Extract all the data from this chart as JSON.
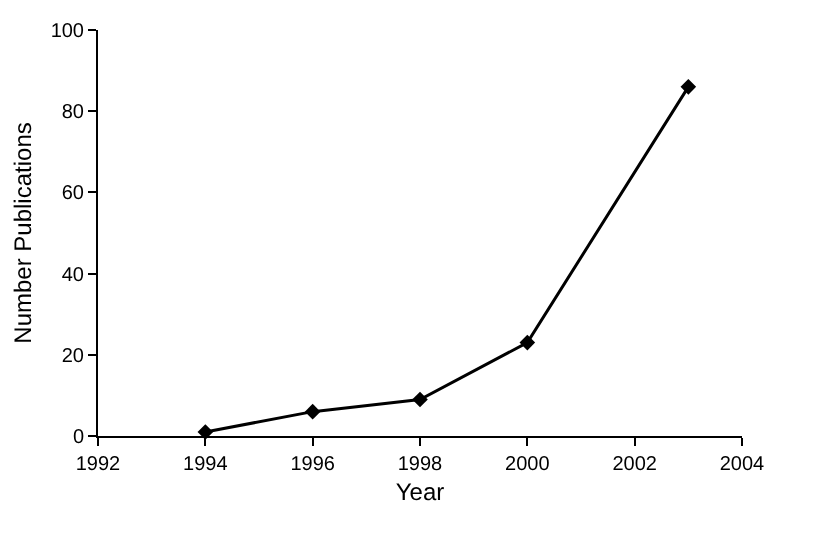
{
  "chart_data": {
    "type": "line",
    "xlabel": "Year",
    "ylabel": "Number Publications",
    "x": [
      1994,
      1996,
      1998,
      2000,
      2003
    ],
    "series": [
      {
        "color": "#000000",
        "values": [
          1,
          6,
          9,
          23,
          86
        ]
      }
    ],
    "xlim": [
      1992,
      2004
    ],
    "xticks": [
      1992,
      1994,
      1996,
      1998,
      2000,
      2002,
      2004
    ],
    "ylim": [
      0,
      100
    ],
    "yticks": [
      0,
      20,
      40,
      60,
      80,
      100
    ],
    "grid": false,
    "marker": "diamond",
    "line_style": "solid"
  }
}
